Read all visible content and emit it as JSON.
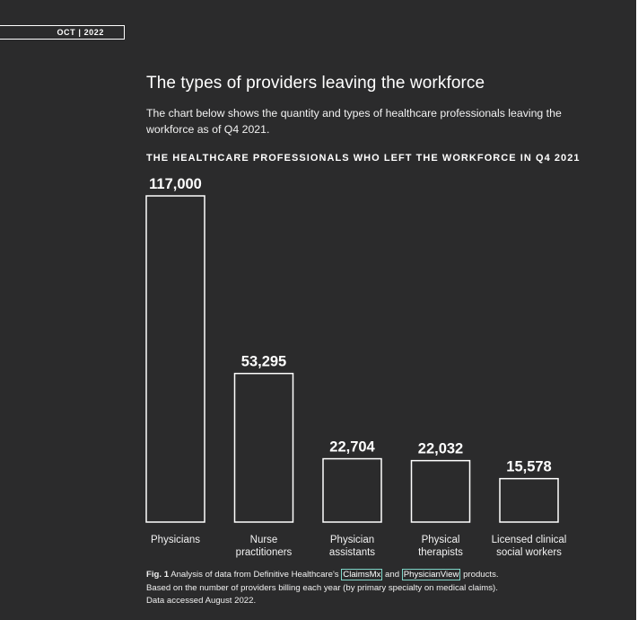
{
  "badge": {
    "date": "OCT | 2022"
  },
  "header": {
    "title": "The types of providers leaving the workforce",
    "description": "The chart below shows the quantity and types of healthcare professionals leaving the workforce as of Q4 2021."
  },
  "chart_data": {
    "type": "bar",
    "title": "THE HEALTHCARE PROFESSIONALS WHO LEFT THE WORKFORCE IN Q4 2021",
    "categories": [
      [
        "Physicians"
      ],
      [
        "Nurse",
        "practitioners"
      ],
      [
        "Physician",
        "assistants"
      ],
      [
        "Physical",
        "therapists"
      ],
      [
        "Licensed clinical",
        "social workers"
      ]
    ],
    "values": [
      117000,
      53295,
      22704,
      22032,
      15578
    ],
    "value_labels": [
      "117,000",
      "53,295",
      "22,704",
      "22,032",
      "15,578"
    ],
    "xlabel": "",
    "ylabel": "",
    "ylim": [
      0,
      117000
    ],
    "grid": false,
    "bar_style": "outline",
    "colors": {
      "bar_stroke": "#ffffff",
      "background": "#2b2b2c"
    }
  },
  "caption": {
    "fig_label": "Fig. 1",
    "text_before": " Analysis of data from Definitive Healthcare's ",
    "link1": "ClaimsMx",
    "text_between": " and ",
    "link2": "PhysicianView",
    "text_after": " products.",
    "line2": "Based on the number of providers billing each year (by primary specialty on medical claims).",
    "line3": "Data accessed August 2022.",
    "link_color": "#7fd6c8"
  }
}
